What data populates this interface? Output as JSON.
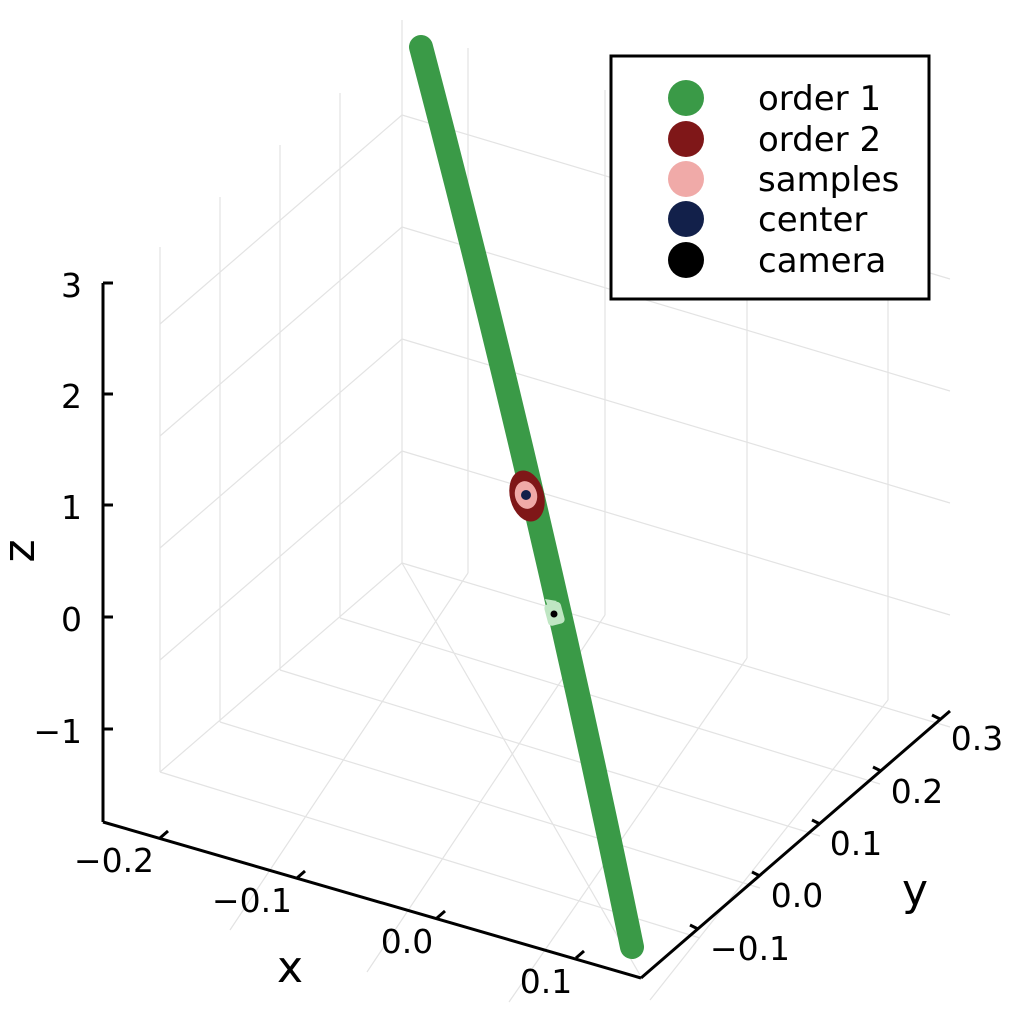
{
  "chart_data": {
    "type": "scatter",
    "projection": "3d",
    "title": "",
    "xlabel": "x",
    "ylabel": "y",
    "zlabel": "z",
    "xticks": [
      "−0.2",
      "−0.1",
      "0.0",
      "0.1"
    ],
    "yticks": [
      "−0.1",
      "0.0",
      "0.1",
      "0.2",
      "0.3"
    ],
    "zticks": [
      "−1",
      "0",
      "1",
      "2",
      "3"
    ],
    "grid": true,
    "legend_position": "top-right",
    "series": [
      {
        "name": "order 1",
        "color": "#3a9a47",
        "description": "dense band of points forming a thin elongated ellipse spanning z from about -2.9 to 3.3"
      },
      {
        "name": "order 2",
        "color": "#7f1718",
        "description": "small ellipse around the center"
      },
      {
        "name": "samples",
        "color": "#f0aaa8",
        "description": "cluster near the center"
      },
      {
        "name": "center",
        "color": "#12204a",
        "x": 0.0,
        "y": 0.0,
        "z": 1.0
      },
      {
        "name": "camera",
        "color": "#000000",
        "x": 0.0,
        "y": 0.0,
        "z": 0.0
      }
    ]
  }
}
